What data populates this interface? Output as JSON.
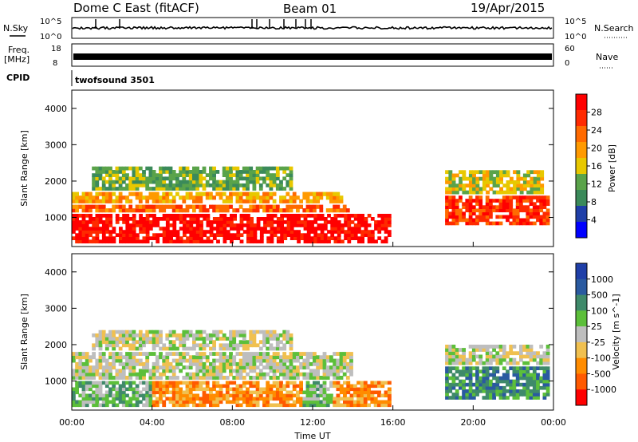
{
  "header": {
    "radar": "Dome C East (fitACF)",
    "beam": "Beam 01",
    "date": "19/Apr/2015"
  },
  "top_panels": {
    "nsky_label": "N.Sky",
    "nsearch_label": "N.Search",
    "noise_ticks_left": [
      "10^5",
      "10^0"
    ],
    "noise_ticks_right": [
      "10^5",
      "10^0"
    ],
    "freq_label_line1": "Freq.",
    "freq_label_line2": "[MHz]",
    "freq_ticks": [
      "18",
      "8"
    ],
    "nave_label": "Nave",
    "nave_ticks": [
      "60",
      "0"
    ],
    "cpid_label": "CPID",
    "cpid_value": "twofsound 3501"
  },
  "colors": {
    "power_scale": [
      "#0000ff",
      "#1f3fa8",
      "#3b8a5a",
      "#5aa34a",
      "#e8c800",
      "#ff9a00",
      "#ff6a00",
      "#ff2a00",
      "#ff0000"
    ],
    "velocity_scale": [
      "#1f3fa8",
      "#2a5aa0",
      "#3f8a6a",
      "#5cbf3a",
      "#bebebe",
      "#f0c050",
      "#ff8c00",
      "#ff5a00",
      "#ff0000"
    ]
  },
  "chart_data": [
    {
      "type": "heatmap",
      "panel": "power",
      "ylabel": "Slant Range [km]",
      "yticks": [
        "1000",
        "2000",
        "3000",
        "4000"
      ],
      "ylim": [
        200,
        4500
      ],
      "xlim": [
        0,
        24
      ],
      "colorbar_label": "Power [dB]",
      "colorbar_ticks": [
        "4",
        "8",
        "12",
        "16",
        "20",
        "24",
        "28"
      ],
      "bands": [
        {
          "t0": 0.0,
          "t1": 15.9,
          "r0": 300,
          "r1": 1100,
          "level": 8
        },
        {
          "t0": 0.0,
          "t1": 14.0,
          "r0": 1150,
          "r1": 1350,
          "level": 6
        },
        {
          "t0": 0.0,
          "t1": 13.5,
          "r0": 1400,
          "r1": 1700,
          "level": 5
        },
        {
          "t0": 1.0,
          "t1": 11.0,
          "r0": 1750,
          "r1": 2400,
          "level": 3
        },
        {
          "t0": 18.6,
          "t1": 23.8,
          "r0": 800,
          "r1": 1600,
          "level": 7
        },
        {
          "t0": 18.6,
          "t1": 23.5,
          "r0": 1650,
          "r1": 2300,
          "level": 4
        }
      ]
    },
    {
      "type": "heatmap",
      "panel": "velocity",
      "ylabel": "Slant Range [km]",
      "yticks": [
        "1000",
        "2000",
        "3000",
        "4000"
      ],
      "ylim": [
        200,
        4500
      ],
      "xlim": [
        0,
        24
      ],
      "xticks": [
        "00:00",
        "04:00",
        "08:00",
        "12:00",
        "16:00",
        "20:00",
        "00:00"
      ],
      "xlabel": "Time UT",
      "colorbar_label": "Velocity [m s^-1]",
      "colorbar_ticks": [
        "1000",
        "500",
        "100",
        "25",
        "-25",
        "-100",
        "-500",
        "-1000"
      ],
      "bands": [
        {
          "t0": 0.0,
          "t1": 4.0,
          "r0": 300,
          "r1": 1000,
          "level": 3
        },
        {
          "t0": 4.0,
          "t1": 11.5,
          "r0": 300,
          "r1": 1000,
          "level": 6
        },
        {
          "t0": 11.5,
          "t1": 13.0,
          "r0": 300,
          "r1": 1000,
          "level": 3
        },
        {
          "t0": 13.0,
          "t1": 15.9,
          "r0": 300,
          "r1": 1000,
          "level": 6
        },
        {
          "t0": 0.0,
          "t1": 14.0,
          "r0": 1050,
          "r1": 1800,
          "level": 4
        },
        {
          "t0": 1.0,
          "t1": 11.0,
          "r0": 1850,
          "r1": 2400,
          "level": 4
        },
        {
          "t0": 18.6,
          "t1": 23.8,
          "r0": 500,
          "r1": 1400,
          "level": 2
        },
        {
          "t0": 18.6,
          "t1": 23.8,
          "r0": 1450,
          "r1": 2000,
          "level": 4
        }
      ]
    }
  ]
}
